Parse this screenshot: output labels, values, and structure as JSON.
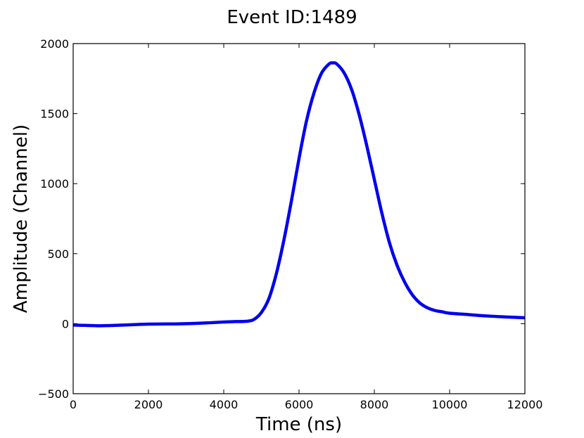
{
  "chart_data": {
    "type": "line",
    "title": "Event ID:1489",
    "xlabel": "Time (ns)",
    "ylabel": "Amplitude (Channel)",
    "xlim": [
      0,
      12000
    ],
    "ylim": [
      -500,
      2000
    ],
    "xticks": [
      0,
      2000,
      4000,
      6000,
      8000,
      10000,
      12000
    ],
    "xtick_labels": [
      "0",
      "2000",
      "4000",
      "6000",
      "8000",
      "10000",
      "12000"
    ],
    "yticks": [
      -500,
      0,
      500,
      1000,
      1500,
      2000
    ],
    "ytick_labels": [
      "−500",
      "0",
      "500",
      "1000",
      "1500",
      "2000"
    ],
    "grid": false,
    "series": [
      {
        "color": "#0000ee",
        "x": [
          0,
          300,
          700,
          1000,
          1500,
          2000,
          2500,
          3000,
          3500,
          4000,
          4300,
          4600,
          4800,
          5000,
          5200,
          5400,
          5600,
          5800,
          6000,
          6200,
          6400,
          6600,
          6800,
          6900,
          7000,
          7200,
          7400,
          7600,
          7800,
          8000,
          8200,
          8400,
          8600,
          8800,
          9000,
          9200,
          9400,
          9600,
          9800,
          10000,
          10500,
          11000,
          11500,
          12000
        ],
        "y": [
          -10,
          -12,
          -15,
          -13,
          -8,
          -3,
          -2,
          0,
          5,
          12,
          15,
          17,
          30,
          80,
          180,
          360,
          600,
          880,
          1180,
          1450,
          1650,
          1790,
          1855,
          1862,
          1855,
          1790,
          1670,
          1490,
          1270,
          1030,
          790,
          580,
          420,
          300,
          210,
          150,
          115,
          95,
          85,
          75,
          65,
          55,
          48,
          42
        ]
      }
    ]
  }
}
